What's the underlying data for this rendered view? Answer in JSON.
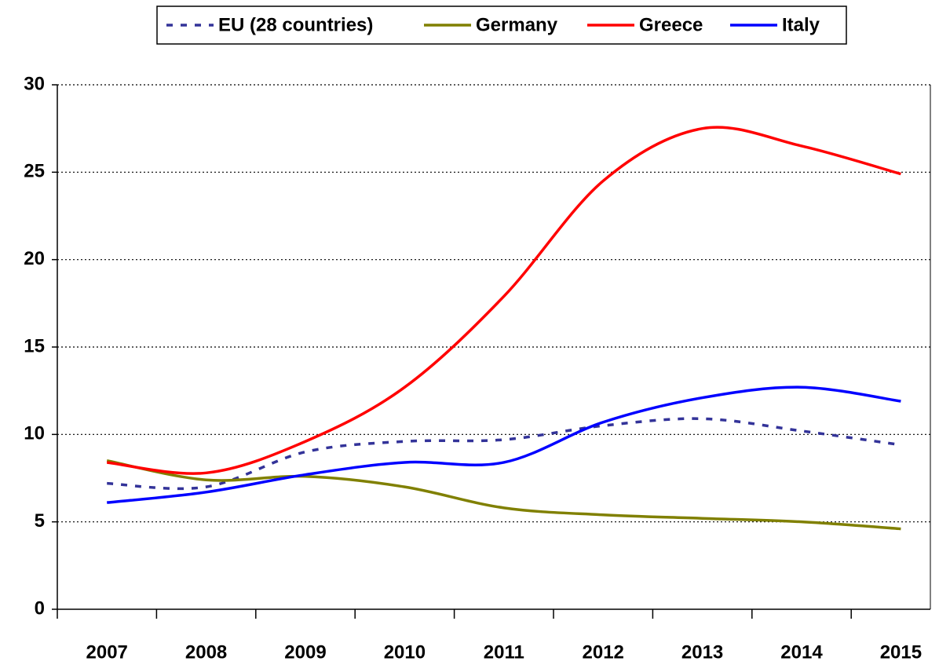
{
  "chart_data": {
    "type": "line",
    "categories": [
      "2007",
      "2008",
      "2009",
      "2010",
      "2011",
      "2012",
      "2013",
      "2014",
      "2015"
    ],
    "series": [
      {
        "name": "EU (28 countries)",
        "color": "#333399",
        "dashed": true,
        "values": [
          7.2,
          7.0,
          9.0,
          9.6,
          9.7,
          10.5,
          10.9,
          10.2,
          9.4
        ]
      },
      {
        "name": "Germany",
        "color": "#808000",
        "values": [
          8.5,
          7.4,
          7.6,
          7.0,
          5.8,
          5.4,
          5.2,
          5.0,
          4.6
        ]
      },
      {
        "name": "Greece",
        "color": "#ff0000",
        "values": [
          8.4,
          7.8,
          9.6,
          12.7,
          17.9,
          24.5,
          27.5,
          26.5,
          24.9
        ]
      },
      {
        "name": "Italy",
        "color": "#0000ff",
        "values": [
          6.1,
          6.7,
          7.7,
          8.4,
          8.4,
          10.7,
          12.1,
          12.7,
          11.9
        ]
      }
    ],
    "ylim": [
      0,
      30
    ],
    "yticks": [
      0,
      5,
      10,
      15,
      20,
      25,
      30
    ],
    "grid": true,
    "legend": "top"
  }
}
